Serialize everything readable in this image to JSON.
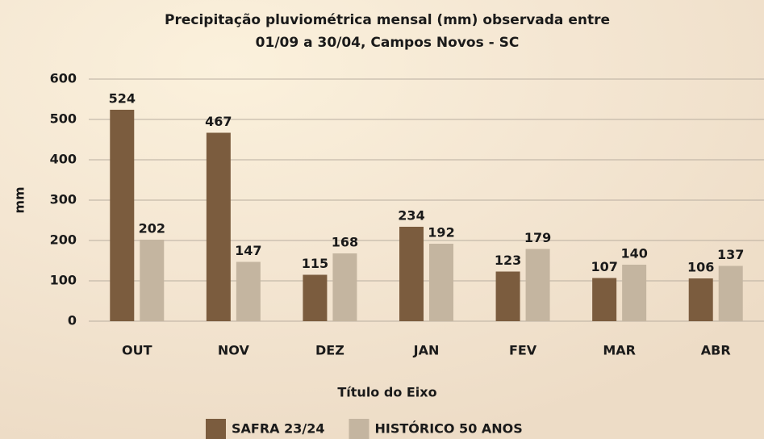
{
  "chart_data": {
    "type": "bar",
    "title": [
      "Precipitação pluviométrica mensal (mm) observada entre",
      "01/09 a 30/04, Campos Novos - SC"
    ],
    "x_label": "Título do Eixo",
    "y_label": "mm",
    "categories": [
      "OUT",
      "NOV",
      "DEZ",
      "JAN",
      "FEV",
      "MAR",
      "ABR"
    ],
    "series": [
      {
        "name": "SAFRA 23/24",
        "color": "#7b5c3e",
        "values": [
          524,
          467,
          115,
          234,
          123,
          107,
          106
        ]
      },
      {
        "name": "HISTÓRICO 50 ANOS",
        "color": "#c4b5a0",
        "values": [
          202,
          147,
          168,
          192,
          179,
          140,
          137
        ]
      }
    ],
    "ylim": [
      0,
      600
    ],
    "yticks": [
      0,
      100,
      200,
      300,
      400,
      500,
      600
    ],
    "grid": true,
    "legend": "bottom"
  }
}
